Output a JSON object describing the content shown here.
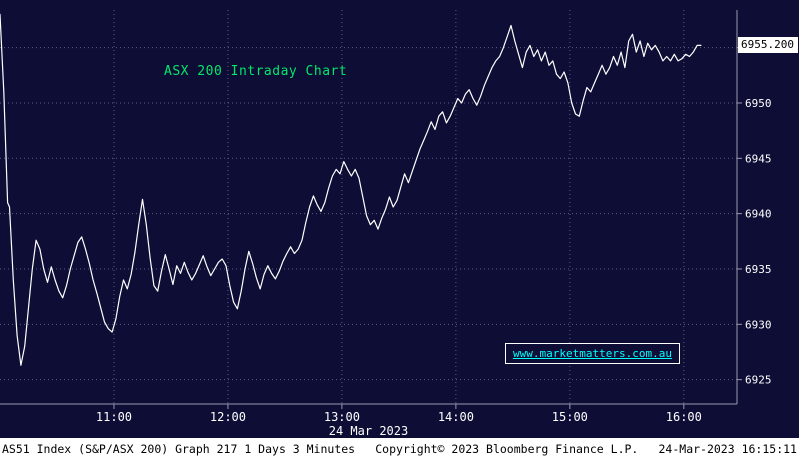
{
  "chart_data": {
    "type": "line",
    "title": "ASX 200 Intraday Chart",
    "xlabel": "24 Mar 2023",
    "x_axis_unit": "minutes after 10:00",
    "x_tick_minutes": [
      60,
      120,
      180,
      240,
      300,
      360
    ],
    "x_tick_labels": [
      "11:00",
      "12:00",
      "13:00",
      "14:00",
      "15:00",
      "16:00"
    ],
    "y_gridlines": [
      6925,
      6930,
      6935,
      6940,
      6945,
      6950,
      6955
    ],
    "y_tick_labels": [
      "6925",
      "6930",
      "6935",
      "6940",
      "6945",
      "6950"
    ],
    "xlim_minutes": [
      0,
      388
    ],
    "ylim": [
      6922.8,
      6958.4
    ],
    "grid": true,
    "legend": false,
    "last_price": 6955.2,
    "last_price_label": "6955.200",
    "series": [
      {
        "name": "AS51 Index (S&P/ASX 200)",
        "points": [
          [
            0,
            6958.0
          ],
          [
            2,
            6951.0
          ],
          [
            4,
            6941.0
          ],
          [
            5,
            6940.6
          ],
          [
            7,
            6934.0
          ],
          [
            9,
            6929.0
          ],
          [
            11,
            6926.3
          ],
          [
            13,
            6928.0
          ],
          [
            15,
            6931.5
          ],
          [
            17,
            6935.0
          ],
          [
            19,
            6937.6
          ],
          [
            21,
            6936.8
          ],
          [
            23,
            6935.0
          ],
          [
            25,
            6933.8
          ],
          [
            27,
            6935.2
          ],
          [
            29,
            6934.0
          ],
          [
            31,
            6933.0
          ],
          [
            33,
            6932.4
          ],
          [
            35,
            6933.5
          ],
          [
            37,
            6935.0
          ],
          [
            39,
            6936.2
          ],
          [
            41,
            6937.4
          ],
          [
            43,
            6937.9
          ],
          [
            45,
            6936.8
          ],
          [
            47,
            6935.5
          ],
          [
            49,
            6934.0
          ],
          [
            51,
            6932.8
          ],
          [
            53,
            6931.5
          ],
          [
            55,
            6930.2
          ],
          [
            57,
            6929.6
          ],
          [
            59,
            6929.3
          ],
          [
            61,
            6930.5
          ],
          [
            63,
            6932.5
          ],
          [
            65,
            6934.0
          ],
          [
            67,
            6933.2
          ],
          [
            69,
            6934.5
          ],
          [
            71,
            6936.5
          ],
          [
            73,
            6939.0
          ],
          [
            75,
            6941.3
          ],
          [
            77,
            6939.0
          ],
          [
            79,
            6936.0
          ],
          [
            81,
            6933.5
          ],
          [
            83,
            6933.0
          ],
          [
            85,
            6934.8
          ],
          [
            87,
            6936.3
          ],
          [
            89,
            6935.0
          ],
          [
            91,
            6933.6
          ],
          [
            93,
            6935.3
          ],
          [
            95,
            6934.6
          ],
          [
            97,
            6935.6
          ],
          [
            99,
            6934.7
          ],
          [
            101,
            6934.0
          ],
          [
            103,
            6934.6
          ],
          [
            105,
            6935.4
          ],
          [
            107,
            6936.2
          ],
          [
            109,
            6935.2
          ],
          [
            111,
            6934.4
          ],
          [
            113,
            6935.0
          ],
          [
            115,
            6935.6
          ],
          [
            117,
            6935.9
          ],
          [
            119,
            6935.3
          ],
          [
            121,
            6933.5
          ],
          [
            123,
            6932.0
          ],
          [
            125,
            6931.4
          ],
          [
            127,
            6933.0
          ],
          [
            129,
            6935.0
          ],
          [
            131,
            6936.6
          ],
          [
            133,
            6935.5
          ],
          [
            135,
            6934.2
          ],
          [
            137,
            6933.2
          ],
          [
            139,
            6934.5
          ],
          [
            141,
            6935.3
          ],
          [
            143,
            6934.6
          ],
          [
            145,
            6934.1
          ],
          [
            147,
            6934.8
          ],
          [
            149,
            6935.7
          ],
          [
            151,
            6936.4
          ],
          [
            153,
            6937.0
          ],
          [
            155,
            6936.4
          ],
          [
            157,
            6936.8
          ],
          [
            159,
            6937.6
          ],
          [
            161,
            6939.2
          ],
          [
            163,
            6940.6
          ],
          [
            165,
            6941.6
          ],
          [
            167,
            6940.8
          ],
          [
            169,
            6940.2
          ],
          [
            171,
            6941.0
          ],
          [
            173,
            6942.3
          ],
          [
            175,
            6943.4
          ],
          [
            177,
            6944.0
          ],
          [
            179,
            6943.6
          ],
          [
            181,
            6944.7
          ],
          [
            183,
            6944.0
          ],
          [
            185,
            6943.4
          ],
          [
            187,
            6944.0
          ],
          [
            189,
            6943.2
          ],
          [
            191,
            6941.5
          ],
          [
            193,
            6939.8
          ],
          [
            195,
            6939.0
          ],
          [
            197,
            6939.4
          ],
          [
            199,
            6938.6
          ],
          [
            201,
            6939.6
          ],
          [
            203,
            6940.4
          ],
          [
            205,
            6941.5
          ],
          [
            207,
            6940.6
          ],
          [
            209,
            6941.2
          ],
          [
            211,
            6942.4
          ],
          [
            213,
            6943.6
          ],
          [
            215,
            6942.8
          ],
          [
            217,
            6943.8
          ],
          [
            219,
            6944.8
          ],
          [
            221,
            6945.8
          ],
          [
            223,
            6946.6
          ],
          [
            225,
            6947.4
          ],
          [
            227,
            6948.3
          ],
          [
            229,
            6947.6
          ],
          [
            231,
            6948.8
          ],
          [
            233,
            6949.2
          ],
          [
            235,
            6948.2
          ],
          [
            237,
            6948.8
          ],
          [
            239,
            6949.6
          ],
          [
            241,
            6950.4
          ],
          [
            243,
            6950.0
          ],
          [
            245,
            6950.8
          ],
          [
            247,
            6951.2
          ],
          [
            249,
            6950.4
          ],
          [
            251,
            6949.8
          ],
          [
            253,
            6950.6
          ],
          [
            255,
            6951.6
          ],
          [
            257,
            6952.4
          ],
          [
            259,
            6953.2
          ],
          [
            261,
            6953.8
          ],
          [
            263,
            6954.2
          ],
          [
            265,
            6955.0
          ],
          [
            267,
            6956.0
          ],
          [
            269,
            6957.0
          ],
          [
            271,
            6955.6
          ],
          [
            273,
            6954.4
          ],
          [
            275,
            6953.2
          ],
          [
            277,
            6954.6
          ],
          [
            279,
            6955.2
          ],
          [
            281,
            6954.2
          ],
          [
            283,
            6954.8
          ],
          [
            285,
            6953.8
          ],
          [
            287,
            6954.6
          ],
          [
            289,
            6953.4
          ],
          [
            291,
            6953.8
          ],
          [
            293,
            6952.6
          ],
          [
            295,
            6952.2
          ],
          [
            297,
            6952.8
          ],
          [
            299,
            6951.8
          ],
          [
            301,
            6950.0
          ],
          [
            303,
            6949.0
          ],
          [
            305,
            6948.8
          ],
          [
            307,
            6950.2
          ],
          [
            309,
            6951.4
          ],
          [
            311,
            6951.0
          ],
          [
            313,
            6951.8
          ],
          [
            315,
            6952.6
          ],
          [
            317,
            6953.4
          ],
          [
            319,
            6952.6
          ],
          [
            321,
            6953.2
          ],
          [
            323,
            6954.2
          ],
          [
            325,
            6953.4
          ],
          [
            327,
            6954.6
          ],
          [
            329,
            6953.2
          ],
          [
            331,
            6955.6
          ],
          [
            333,
            6956.2
          ],
          [
            335,
            6954.6
          ],
          [
            337,
            6955.6
          ],
          [
            339,
            6954.2
          ],
          [
            341,
            6955.4
          ],
          [
            343,
            6954.8
          ],
          [
            345,
            6955.2
          ],
          [
            347,
            6954.6
          ],
          [
            349,
            6953.8
          ],
          [
            351,
            6954.2
          ],
          [
            353,
            6953.8
          ],
          [
            355,
            6954.4
          ],
          [
            357,
            6953.8
          ],
          [
            359,
            6954.0
          ],
          [
            361,
            6954.4
          ],
          [
            363,
            6954.2
          ],
          [
            365,
            6954.6
          ],
          [
            367,
            6955.2
          ],
          [
            369,
            6955.2
          ]
        ]
      }
    ]
  },
  "watermark": "www.marketmatters.com.au",
  "footer": {
    "left": "AS51 Index (S&P/ASX 200) Graph 217 1 Days 3 Minutes",
    "center": "Copyright© 2023 Bloomberg Finance L.P.",
    "right": "24-Mar-2023 16:15:11"
  },
  "colors": {
    "background": "#0d0d35",
    "price_line": "#ffffff",
    "grid": "#5d5d85",
    "title_green": "#00e86a",
    "watermark_cyan": "#00ffff",
    "axis_text": "#ffffff",
    "last_price_bg": "#ffffff",
    "last_price_text": "#000000",
    "footer_bg": "#ffffff",
    "footer_text": "#000000"
  }
}
